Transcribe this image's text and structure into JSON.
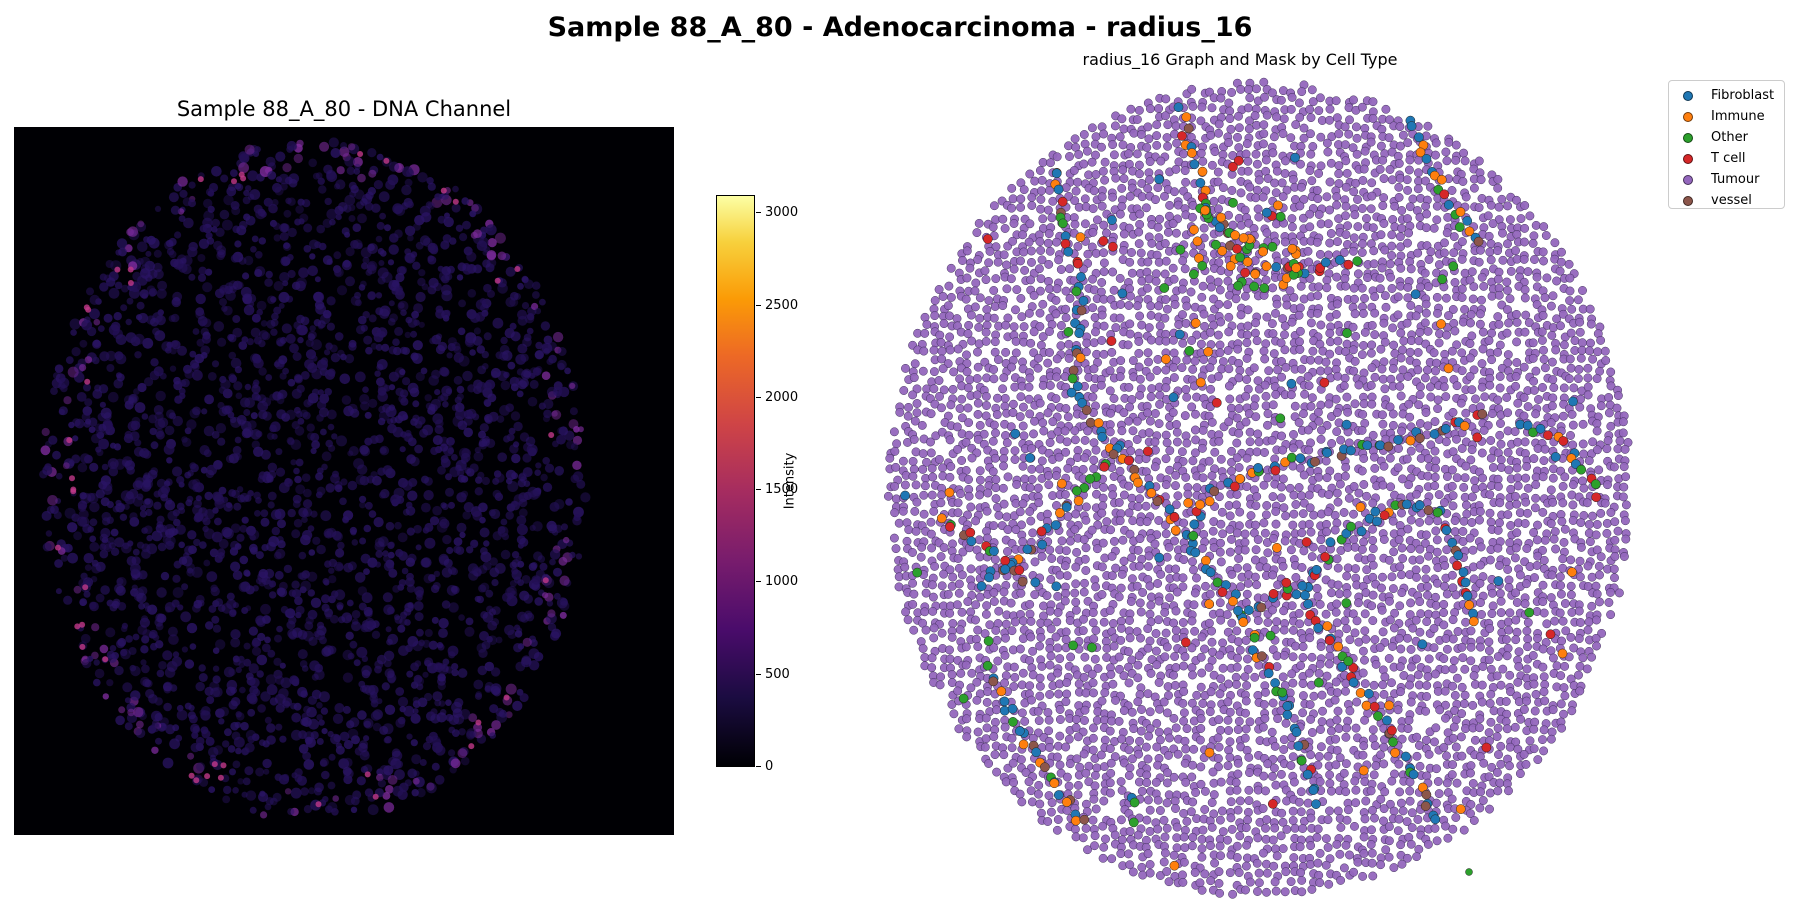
{
  "suptitle": "Sample 88_A_80 - Adenocarcinoma - radius_16",
  "chart_data": [
    {
      "type": "heatmap",
      "title": "Sample 88_A_80 - DNA Channel",
      "colormap": "inferno",
      "colorbar": {
        "label": "Intensity",
        "range": [
          0,
          3100
        ],
        "ticks": [
          0,
          500,
          1000,
          1500,
          2000,
          2500,
          3000
        ]
      },
      "axes_visible": false
    },
    {
      "type": "scatter",
      "title": "radius_16 Graph and Mask by Cell Type",
      "axes_visible": false,
      "legend_position": "top-right",
      "series": [
        {
          "name": "Fibroblast",
          "color": "#1f77b4"
        },
        {
          "name": "Immune",
          "color": "#ff7f0e"
        },
        {
          "name": "Other",
          "color": "#2ca02c"
        },
        {
          "name": "T cell",
          "color": "#d62728"
        },
        {
          "name": "Tumour",
          "color": "#9467bd"
        },
        {
          "name": "vessel",
          "color": "#8c564b"
        }
      ]
    }
  ]
}
